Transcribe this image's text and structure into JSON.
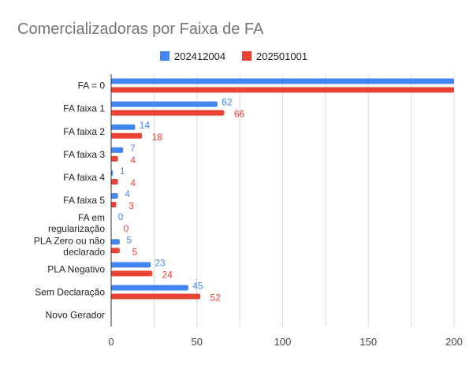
{
  "chart_data": {
    "type": "bar",
    "orientation": "horizontal",
    "title": "Comercializadoras por Faixa de FA",
    "categories": [
      [
        "FA = 0"
      ],
      [
        "FA faixa 1"
      ],
      [
        "FA faixa 2"
      ],
      [
        "FA faixa 3"
      ],
      [
        "FA faixa 4"
      ],
      [
        "FA faixa 5"
      ],
      [
        "FA em",
        "regularização"
      ],
      [
        "PLA Zero ou não",
        "declarado"
      ],
      [
        "PLA Negativo"
      ],
      [
        "Sem Declaração"
      ],
      [
        "Novo Gerador"
      ]
    ],
    "series": [
      {
        "name": "202412004",
        "color": "#4285f4",
        "values": [
          200,
          62,
          14,
          7,
          1,
          4,
          0,
          5,
          23,
          45,
          null
        ],
        "labels": [
          "",
          "62",
          "14",
          "7",
          "1",
          "4",
          "0",
          "5",
          "23",
          "45",
          ""
        ]
      },
      {
        "name": "202501001",
        "color": "#ea4335",
        "values": [
          200,
          66,
          18,
          4,
          4,
          3,
          0,
          5,
          24,
          52,
          null
        ],
        "labels": [
          "",
          "66",
          "18",
          "4",
          "4",
          "3",
          "0",
          "5",
          "24",
          "52",
          ""
        ]
      }
    ],
    "xlim": [
      0,
      200
    ],
    "xticks": [
      0,
      50,
      100,
      150,
      200
    ],
    "xtick_labels": [
      "0",
      "50",
      "100",
      "150",
      "200"
    ],
    "grid": true,
    "legend_position": "top"
  }
}
